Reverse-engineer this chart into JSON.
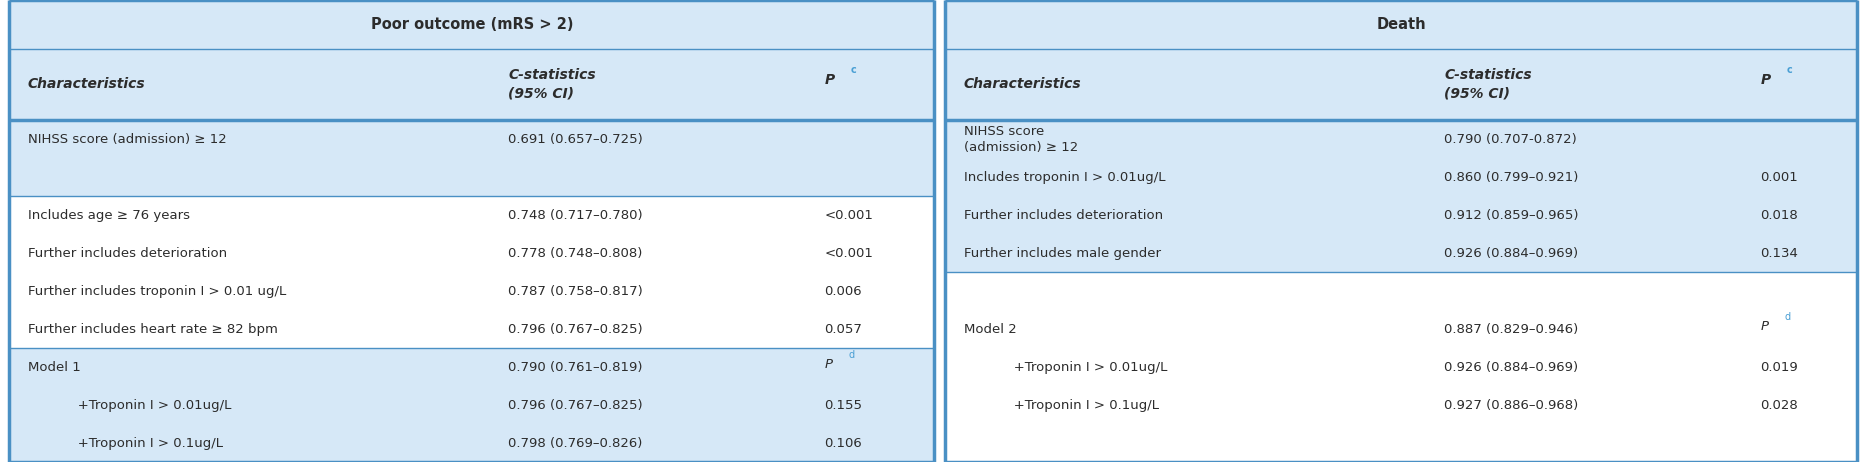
{
  "title_left": "Poor outcome (mRS > 2)",
  "title_right": "Death",
  "bg_color": "#d6e8f7",
  "white_bg": "#ffffff",
  "border_color": "#4a90c4",
  "text_color": "#2c2c2c",
  "superscript_color": "#4a9fd4",
  "figsize": [
    18.61,
    4.62
  ],
  "dpi": 100,
  "left_section": {
    "rows": [
      {
        "char": "NIHSS score (admission) ≥ 12",
        "cstat": "0.691 (0.657–0.725)",
        "p": "",
        "indent": false,
        "bg": "light"
      },
      {
        "char": "",
        "cstat": "",
        "p": "",
        "indent": false,
        "bg": "light"
      },
      {
        "char": "Includes age ≥ 76 years",
        "cstat": "0.748 (0.717–0.780)",
        "p": "<0.001",
        "indent": false,
        "bg": "white"
      },
      {
        "char": "Further includes deterioration",
        "cstat": "0.778 (0.748–0.808)",
        "p": "<0.001",
        "indent": false,
        "bg": "white"
      },
      {
        "char": "Further includes troponin I > 0.01 ug/L",
        "cstat": "0.787 (0.758–0.817)",
        "p": "0.006",
        "indent": false,
        "bg": "white"
      },
      {
        "char": "Further includes heart rate ≥ 82 bpm",
        "cstat": "0.796 (0.767–0.825)",
        "p": "0.057",
        "indent": false,
        "bg": "white"
      },
      {
        "char": "Model 1",
        "cstat": "0.790 (0.761–0.819)",
        "p": "Pd",
        "indent": false,
        "bg": "light"
      },
      {
        "char": "   +Troponin I > 0.01ug/L",
        "cstat": "0.796 (0.767–0.825)",
        "p": "0.155",
        "indent": true,
        "bg": "light"
      },
      {
        "char": "   +Troponin I > 0.1ug/L",
        "cstat": "0.798 (0.769–0.826)",
        "p": "0.106",
        "indent": true,
        "bg": "light"
      }
    ]
  },
  "right_section": {
    "rows": [
      {
        "char": "NIHSS score\n(admission) ≥ 12",
        "cstat": "0.790 (0.707-0.872)",
        "p": "",
        "indent": false,
        "bg": "light"
      },
      {
        "char": "Includes troponin I > 0.01ug/L",
        "cstat": "0.860 (0.799–0.921)",
        "p": "0.001",
        "indent": false,
        "bg": "light"
      },
      {
        "char": "Further includes deterioration",
        "cstat": "0.912 (0.859–0.965)",
        "p": "0.018",
        "indent": false,
        "bg": "light"
      },
      {
        "char": "Further includes male gender",
        "cstat": "0.926 (0.884–0.969)",
        "p": "0.134",
        "indent": false,
        "bg": "light"
      },
      {
        "char": "",
        "cstat": "",
        "p": "",
        "indent": false,
        "bg": "white"
      },
      {
        "char": "Model 2",
        "cstat": "0.887 (0.829–0.946)",
        "p": "Pd",
        "indent": false,
        "bg": "white"
      },
      {
        "char": "   +Troponin I > 0.01ug/L",
        "cstat": "0.926 (0.884–0.969)",
        "p": "0.019",
        "indent": true,
        "bg": "white"
      },
      {
        "char": "   +Troponin I > 0.1ug/L",
        "cstat": "0.927 (0.886–0.968)",
        "p": "0.028",
        "indent": true,
        "bg": "white"
      },
      {
        "char": "",
        "cstat": "",
        "p": "",
        "indent": false,
        "bg": "white"
      }
    ]
  }
}
